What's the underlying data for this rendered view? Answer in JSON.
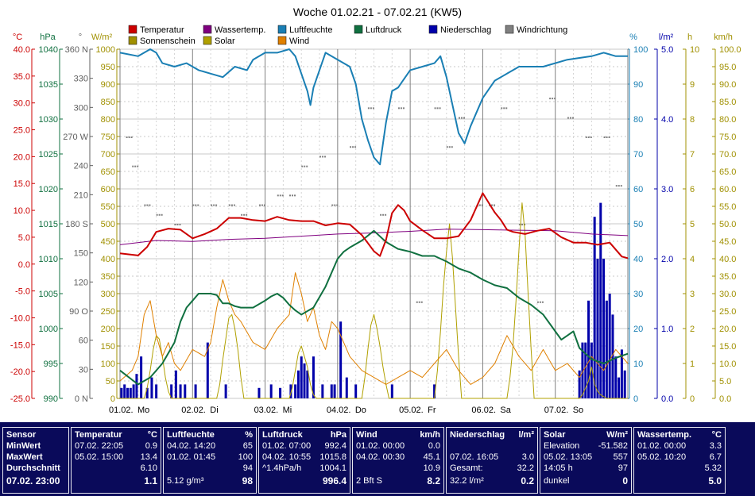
{
  "title": "Woche 01.02.21 - 07.02.21 (KW5)",
  "legend": [
    {
      "label": "Temperatur",
      "color": "#cc0000"
    },
    {
      "label": "Wassertemp.",
      "color": "#800080"
    },
    {
      "label": "Luftfeuchte",
      "color": "#1a7fb4"
    },
    {
      "label": "Luftdruck",
      "color": "#107040"
    },
    {
      "label": "Niederschlag",
      "color": "#0000aa"
    },
    {
      "label": "Windrichtung",
      "color": "#808080"
    },
    {
      "label": "Sonnenschein",
      "color": "#a09000"
    },
    {
      "label": "Solar",
      "color": "#b0a000"
    },
    {
      "label": "Wind",
      "color": "#e08000"
    }
  ],
  "axes": {
    "temp": {
      "unit": "°C",
      "color": "#cc0000",
      "ticks": [
        "40.0",
        "35.0",
        "30.0",
        "25.0",
        "20.0",
        "15.0",
        "10.0",
        "5.0",
        "0.0",
        "-5.0",
        "-10.0",
        "-15.0",
        "-20.0",
        "-25.0"
      ]
    },
    "pressure": {
      "unit": "hPa",
      "color": "#107040",
      "ticks": [
        "1040",
        "1035",
        "1030",
        "1025",
        "1020",
        "1015",
        "1010",
        "1005",
        "1000",
        "995",
        "990"
      ]
    },
    "winddir": {
      "unit": "°",
      "color": "#606060",
      "ticks": [
        "360 N",
        "330",
        "300",
        "270 W",
        "240",
        "210",
        "180 S",
        "150",
        "120",
        "90 O",
        "60",
        "30",
        "0 N"
      ]
    },
    "solar": {
      "unit": "W/m²",
      "color": "#a09000",
      "ticks": [
        "1000",
        "950",
        "900",
        "850",
        "800",
        "750",
        "700",
        "650",
        "600",
        "550",
        "500",
        "450",
        "400",
        "350",
        "300",
        "250",
        "200",
        "150",
        "100",
        "50",
        "0"
      ]
    },
    "humidity": {
      "unit": "%",
      "color": "#1a7fb4",
      "ticks": [
        "100",
        "90",
        "80",
        "70",
        "60",
        "50",
        "40",
        "30",
        "20",
        "10",
        "0"
      ]
    },
    "rain": {
      "unit": "l/m²",
      "color": "#0000aa",
      "ticks": [
        "5.0",
        "4.0",
        "3.0",
        "2.0",
        "1.0",
        "0.0"
      ]
    },
    "sun": {
      "unit": "h",
      "color": "#a09000",
      "ticks": [
        "10",
        "9",
        "8",
        "7",
        "6",
        "5",
        "4",
        "3",
        "2",
        "1",
        "0"
      ]
    },
    "wind": {
      "unit": "km/h",
      "color": "#a09000",
      "ticks": [
        "100.0",
        "95.0",
        "90.0",
        "85.0",
        "80.0",
        "75.0",
        "70.0",
        "65.0",
        "60.0",
        "55.0",
        "50.0",
        "45.0",
        "40.0",
        "35.0",
        "30.0",
        "25.0",
        "20.0",
        "15.0",
        "10.0",
        "5.0",
        "0.0"
      ]
    }
  },
  "chart_data": {
    "type": "line",
    "x_labels": [
      "01.02.",
      "Mo",
      "02.02.",
      "Di",
      "03.02.",
      "Mi",
      "04.02.",
      "Do",
      "05.02.",
      "Fr",
      "06.02.",
      "Sa",
      "07.02.",
      "So"
    ],
    "x_unit": "hours since 01.02. 00:00",
    "xlim": [
      0,
      168
    ],
    "series": [
      {
        "name": "Temperatur",
        "axis": "temp",
        "color": "#cc0000",
        "x": [
          0,
          6,
          9,
          12,
          16,
          20,
          24,
          28,
          32,
          36,
          40,
          44,
          48,
          52,
          56,
          60,
          64,
          68,
          72,
          76,
          80,
          84,
          86,
          88,
          90,
          92,
          94,
          96,
          100,
          104,
          108,
          112,
          116,
          120,
          124,
          126,
          128,
          130,
          134,
          138,
          142,
          146,
          150,
          154,
          158,
          162,
          166,
          168
        ],
        "y": [
          2.0,
          1.6,
          3.2,
          6.0,
          6.6,
          6.4,
          4.8,
          5.6,
          6.6,
          8.6,
          8.6,
          8.2,
          8.0,
          8.8,
          8.2,
          8.0,
          8.0,
          7.2,
          7.6,
          7.4,
          5.4,
          2.4,
          1.5,
          4.5,
          9.5,
          11.0,
          10.0,
          8.0,
          6.3,
          4.8,
          4.8,
          5.2,
          8.2,
          13.2,
          9.6,
          8.2,
          6.4,
          6.0,
          5.6,
          6.2,
          6.6,
          5.0,
          4.0,
          4.0,
          3.6,
          4.0,
          1.4,
          1.1
        ]
      },
      {
        "name": "Wassertemp.",
        "axis": "temp",
        "color": "#800080",
        "x": [
          0,
          12,
          24,
          36,
          48,
          60,
          72,
          84,
          96,
          108,
          120,
          132,
          144,
          156,
          168
        ],
        "y": [
          3.6,
          4.4,
          4.2,
          4.6,
          4.8,
          5.2,
          5.6,
          5.8,
          6.1,
          6.5,
          6.4,
          6.3,
          6.2,
          5.6,
          5.3
        ]
      },
      {
        "name": "Luftfeuchte",
        "axis": "humidity",
        "color": "#1a7fb4",
        "x": [
          0,
          6,
          10,
          12,
          14,
          18,
          22,
          26,
          30,
          34,
          38,
          42,
          44,
          48,
          52,
          56,
          58,
          60,
          62,
          63,
          64,
          66,
          68,
          72,
          74,
          76,
          78,
          80,
          82,
          84,
          86,
          88,
          90,
          92,
          96,
          100,
          104,
          106,
          108,
          110,
          112,
          114,
          116,
          118,
          120,
          124,
          128,
          132,
          140,
          148,
          156,
          160,
          164,
          168
        ],
        "y": [
          99,
          98,
          100,
          99,
          96,
          95,
          96,
          94,
          93,
          92,
          95,
          94,
          97,
          99,
          99,
          100,
          98,
          93,
          88,
          84,
          89,
          94,
          99,
          97,
          96,
          95,
          90,
          80,
          74,
          69,
          67,
          79,
          88,
          89,
          94,
          95,
          96,
          98,
          92,
          84,
          76,
          73,
          78,
          82,
          86,
          91,
          93,
          95,
          95,
          97,
          98,
          99,
          98,
          98
        ]
      },
      {
        "name": "Luftdruck",
        "axis": "pressure",
        "color": "#107040",
        "x": [
          0,
          6,
          10,
          14,
          18,
          20,
          22,
          24,
          26,
          28,
          30,
          32,
          34,
          36,
          38,
          40,
          44,
          48,
          50,
          52,
          54,
          56,
          58,
          60,
          64,
          68,
          72,
          74,
          76,
          80,
          84,
          88,
          92,
          96,
          100,
          104,
          108,
          112,
          116,
          120,
          124,
          128,
          132,
          136,
          140,
          144,
          146,
          148,
          150,
          152,
          156,
          160,
          164,
          168
        ],
        "y": [
          994,
          992,
          993,
          995,
          998,
          1001,
          1003,
          1004,
          1005,
          1005,
          1005,
          1004.8,
          1003.6,
          1003.6,
          1003.2,
          1003,
          1003,
          1004,
          1004.6,
          1005,
          1004.4,
          1003.4,
          1002.6,
          1002,
          1003,
          1006,
          1010,
          1011,
          1011.6,
          1012.6,
          1014,
          1012.4,
          1011.4,
          1011,
          1010.4,
          1010.4,
          1009.6,
          1008.6,
          1008,
          1007,
          1006.2,
          1005.8,
          1004.4,
          1003.4,
          1002,
          999.6,
          998.4,
          999,
          999.6,
          997.2,
          995.6,
          995,
          995.8,
          996.4
        ]
      },
      {
        "name": "Solar",
        "axis": "solar",
        "color": "#b0a000",
        "x": [
          0,
          8,
          9,
          10,
          11,
          12,
          13,
          14,
          15,
          16,
          17,
          24,
          32,
          33,
          34,
          35,
          36,
          37,
          38,
          39,
          40,
          41,
          48,
          56,
          57,
          58,
          59,
          60,
          61,
          62,
          63,
          64,
          65,
          72,
          80,
          81,
          82,
          83,
          84,
          85,
          86,
          87,
          88,
          89,
          96,
          104,
          105,
          106,
          107,
          108,
          109,
          110,
          111,
          112,
          113,
          120,
          128,
          129,
          130,
          131,
          132,
          133,
          134,
          135,
          136,
          137,
          144,
          152,
          153,
          154,
          155,
          156,
          157,
          158,
          159,
          160,
          161,
          168
        ],
        "y": [
          0,
          0,
          30,
          80,
          140,
          180,
          170,
          120,
          60,
          20,
          0,
          0,
          0,
          40,
          110,
          170,
          230,
          240,
          200,
          140,
          60,
          0,
          0,
          0,
          30,
          80,
          130,
          150,
          120,
          90,
          40,
          10,
          0,
          0,
          0,
          60,
          140,
          210,
          240,
          200,
          150,
          90,
          40,
          0,
          0,
          0,
          80,
          190,
          320,
          420,
          500,
          400,
          260,
          120,
          0,
          0,
          0,
          60,
          150,
          280,
          430,
          560,
          470,
          300,
          140,
          0,
          0,
          0,
          10,
          30,
          50,
          90,
          40,
          20,
          10,
          5,
          0,
          0
        ]
      },
      {
        "name": "Wind",
        "axis": "wind",
        "color": "#e08000",
        "x": [
          0,
          4,
          6,
          8,
          10,
          12,
          14,
          16,
          18,
          20,
          24,
          28,
          30,
          32,
          34,
          36,
          38,
          40,
          44,
          48,
          52,
          56,
          58,
          60,
          62,
          64,
          66,
          68,
          70,
          72,
          76,
          80,
          84,
          88,
          92,
          96,
          100,
          104,
          108,
          112,
          116,
          120,
          124,
          128,
          132,
          136,
          140,
          144,
          148,
          152,
          156,
          160,
          164,
          168
        ],
        "y": [
          5,
          8,
          12,
          24,
          28,
          18,
          12,
          16,
          10,
          8,
          14,
          12,
          16,
          26,
          34,
          28,
          24,
          22,
          16,
          14,
          20,
          24,
          36,
          30,
          22,
          26,
          18,
          14,
          22,
          20,
          12,
          8,
          6,
          4,
          6,
          8,
          6,
          10,
          14,
          8,
          4,
          6,
          10,
          18,
          12,
          8,
          14,
          8,
          10,
          6,
          12,
          8,
          14,
          10
        ]
      }
    ],
    "bars": {
      "name": "Niederschlag",
      "axis": "rain",
      "color": "#0000aa",
      "x": [
        0.5,
        1.5,
        2.5,
        3.5,
        4.5,
        5.5,
        7,
        9,
        10.5,
        12,
        17,
        18.5,
        20,
        21.5,
        25,
        29,
        35,
        46,
        50,
        53,
        56.5,
        58,
        59,
        60,
        61,
        62,
        64,
        67,
        70,
        71,
        73,
        75,
        78,
        90,
        104,
        152,
        153,
        154,
        155,
        156,
        157,
        158,
        159,
        160,
        161,
        162,
        163,
        164,
        165,
        166,
        167
      ],
      "y": [
        0.15,
        0.2,
        0.15,
        0.15,
        0.2,
        0.35,
        0.6,
        0.15,
        0.3,
        0.2,
        0.2,
        0.4,
        0.2,
        0.2,
        0.2,
        0.8,
        0.2,
        0.15,
        0.2,
        0.15,
        0.2,
        0.2,
        0.4,
        0.6,
        0.5,
        0.4,
        0.6,
        0.2,
        0.2,
        0.2,
        1.1,
        0.3,
        0.2,
        0.2,
        0.2,
        0.4,
        0.8,
        0.8,
        1.4,
        0.8,
        2.6,
        2.0,
        2.8,
        2.0,
        1.4,
        1.5,
        1.2,
        0.6,
        0.3,
        0.7,
        0.4
      ]
    },
    "windrichtung_points": {
      "x": [
        2,
        4,
        8,
        12,
        18,
        24,
        30,
        36,
        40,
        46,
        52,
        56,
        60,
        66,
        70,
        76,
        82,
        86,
        92,
        98,
        104,
        108,
        112,
        118,
        122,
        126,
        132,
        138,
        142,
        148,
        154,
        160,
        164
      ],
      "y": [
        270,
        240,
        200,
        190,
        180,
        200,
        200,
        200,
        190,
        200,
        210,
        210,
        240,
        250,
        200,
        260,
        300,
        190,
        300,
        100,
        300,
        260,
        290,
        200,
        200,
        300,
        180,
        100,
        310,
        290,
        270,
        270,
        220
      ]
    }
  },
  "stats": {
    "sensor": {
      "header": "Sensor",
      "rows": [
        "MinWert",
        "MaxWert",
        "Durchschnitt",
        "07.02. 23:00"
      ]
    },
    "temperatur": {
      "header": "Temperatur",
      "unit": "°C",
      "rows": [
        {
          "a": "07.02.  22:05",
          "v": "0.9"
        },
        {
          "a": "05.02.  15:00",
          "v": "13.4"
        },
        {
          "a": "",
          "v": "6.10"
        },
        {
          "a": "",
          "v": "1.1"
        }
      ]
    },
    "luftfeuchte": {
      "header": "Luftfeuchte",
      "unit": "%",
      "rows": [
        {
          "a": "04.02.  14:20",
          "v": "65"
        },
        {
          "a": "01.02.  01:45",
          "v": "100"
        },
        {
          "a": "",
          "v": "94"
        },
        {
          "a": "5.12 g/m³",
          "v": "98"
        }
      ]
    },
    "luftdruck": {
      "header": "Luftdruck",
      "unit": "hPa",
      "rows": [
        {
          "a": "01.02.  07:00",
          "v": "992.4"
        },
        {
          "a": "04.02.  10:55",
          "v": "1015.8"
        },
        {
          "a": "^1.4hPa/h",
          "v": "1004.1"
        },
        {
          "a": "",
          "v": "996.4"
        }
      ]
    },
    "wind": {
      "header": "Wind",
      "unit": "km/h",
      "rows": [
        {
          "a": "01.02.  00:00",
          "v": "0.0"
        },
        {
          "a": "04.02.  00:30",
          "v": "45.1"
        },
        {
          "a": "",
          "v": "10.9"
        },
        {
          "a": "2 Bft S",
          "v": "8.2"
        }
      ]
    },
    "niederschlag": {
      "header": "Niederschlag",
      "unit": "l/m²",
      "rows": [
        {
          "a": "",
          "v": ""
        },
        {
          "a": "07.02.  16:05",
          "v": "3.0"
        },
        {
          "a": "Gesamt:",
          "v": "32.2"
        },
        {
          "a": "32.2 l/m²",
          "v": "0.2"
        }
      ]
    },
    "solar": {
      "header": "Solar",
      "unit": "W/m²",
      "rows": [
        {
          "a": "Elevation",
          "v": "-51.582"
        },
        {
          "a": "05.02.  13:05",
          "v": "557"
        },
        {
          "a": "14:05 h",
          "v": "97"
        },
        {
          "a": "dunkel",
          "v": "0"
        }
      ]
    },
    "wassertemp": {
      "header": "Wassertemp.",
      "unit": "°C",
      "rows": [
        {
          "a": "01.02.  00:00",
          "v": "3.3"
        },
        {
          "a": "05.02.  10:20",
          "v": "6.7"
        },
        {
          "a": "",
          "v": "5.32"
        },
        {
          "a": "",
          "v": "5.0"
        }
      ]
    }
  }
}
